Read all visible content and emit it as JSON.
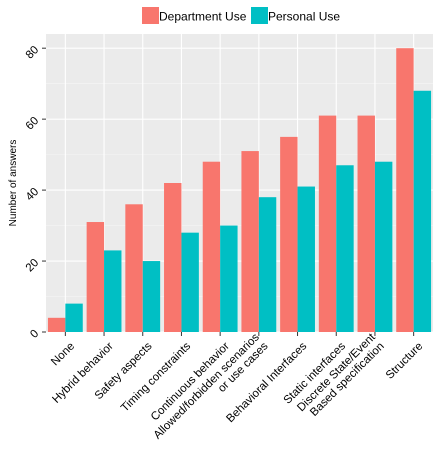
{
  "chart_data": {
    "type": "bar",
    "categories": [
      "None",
      "Hybrid behavior",
      "Safety aspects",
      "Timing constraints",
      "Continuous behavior",
      "Allowed/forbidden scenarios\nor use cases",
      "Behavioral Interfaces",
      "Static interfaces",
      "Discrete State/Event\nBased specification",
      "Structure"
    ],
    "series": [
      {
        "name": "Department Use",
        "color": "#F8766D",
        "values": [
          4,
          31,
          36,
          42,
          48,
          51,
          55,
          61,
          61,
          80
        ]
      },
      {
        "name": "Personal Use",
        "color": "#00BFC4",
        "values": [
          8,
          23,
          20,
          28,
          30,
          38,
          41,
          47,
          48,
          68
        ]
      }
    ],
    "ylabel": "Number of answers",
    "xlabel": "",
    "ylim": [
      0,
      84
    ],
    "yticks": [
      0,
      20,
      40,
      60,
      80
    ],
    "grid": true,
    "legend_position": "top",
    "panel_background": "#EBEBEB",
    "grid_color": "#FFFFFF"
  }
}
